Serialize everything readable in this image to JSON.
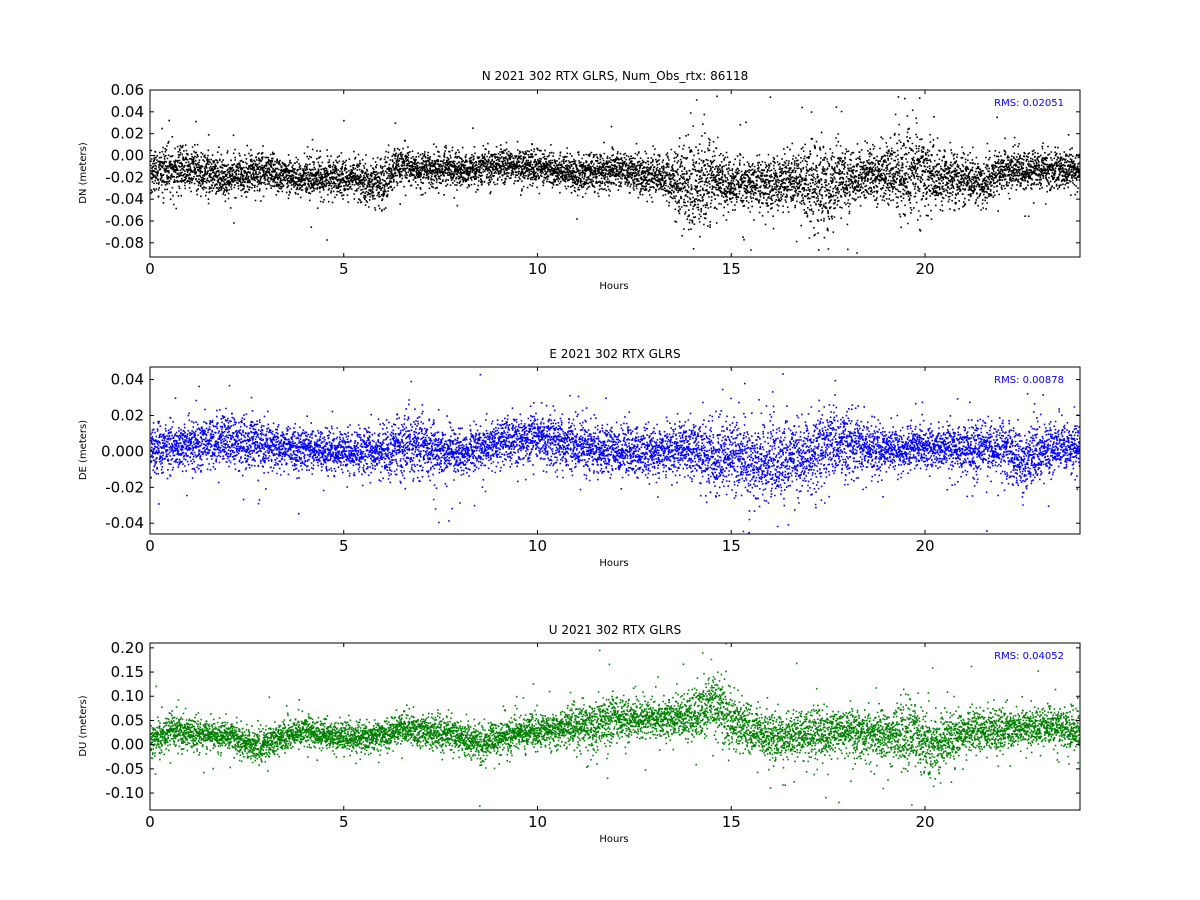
{
  "chart_data": [
    {
      "type": "scatter",
      "title": "N 2021 302 RTX  GLRS, Num_Obs_rtx: 86118",
      "xlabel": "Hours",
      "ylabel": "DN (meters)",
      "xlim": [
        0,
        24
      ],
      "ylim": [
        -0.093,
        0.06
      ],
      "xticks": [
        "0",
        "5",
        "10",
        "15",
        "20"
      ],
      "yticks": [
        "0.06",
        "0.04",
        "0.02",
        "0.00",
        "-0.02",
        "-0.04",
        "-0.06",
        "-0.08"
      ],
      "annotation": "RMS:  0.02051",
      "color": "#000000",
      "series_profile": {
        "hours": [
          0,
          1,
          2,
          3,
          4,
          5,
          6,
          6.4,
          7,
          8,
          9,
          10,
          11,
          12,
          13,
          13.5,
          14,
          14.3,
          14.6,
          15,
          16,
          16.5,
          17,
          17.4,
          17.8,
          18.5,
          19,
          19.6,
          20.2,
          21,
          21.5,
          22,
          23,
          24
        ],
        "mean": [
          -0.015,
          -0.012,
          -0.018,
          -0.015,
          -0.02,
          -0.02,
          -0.025,
          -0.008,
          -0.012,
          -0.013,
          -0.008,
          -0.01,
          -0.016,
          -0.012,
          -0.018,
          -0.022,
          -0.028,
          -0.025,
          -0.02,
          -0.025,
          -0.024,
          -0.022,
          -0.025,
          -0.03,
          -0.022,
          -0.018,
          -0.015,
          -0.015,
          -0.02,
          -0.02,
          -0.024,
          -0.015,
          -0.012,
          -0.012
        ],
        "spread": [
          0.012,
          0.013,
          0.012,
          0.009,
          0.01,
          0.011,
          0.012,
          0.01,
          0.01,
          0.01,
          0.009,
          0.009,
          0.01,
          0.01,
          0.011,
          0.016,
          0.024,
          0.026,
          0.02,
          0.013,
          0.014,
          0.016,
          0.022,
          0.03,
          0.018,
          0.013,
          0.016,
          0.027,
          0.018,
          0.012,
          0.012,
          0.011,
          0.011,
          0.011
        ]
      }
    },
    {
      "type": "scatter",
      "title": "E 2021 302 RTX  GLRS",
      "xlabel": "Hours",
      "ylabel": "DE (meters)",
      "xlim": [
        0,
        24
      ],
      "ylim": [
        -0.046,
        0.047
      ],
      "xticks": [
        "0",
        "5",
        "10",
        "15",
        "20"
      ],
      "yticks": [
        "0.04",
        "0.02",
        "0.000",
        "-0.02",
        "-0.04"
      ],
      "annotation": "RMS:  0.00878",
      "color": "#0000ff",
      "series_profile": {
        "hours": [
          0,
          1,
          2,
          3,
          4,
          5,
          6,
          6.8,
          7.5,
          8,
          9,
          10,
          11,
          12,
          13,
          14,
          14.5,
          15,
          15.8,
          16.5,
          17,
          17.5,
          18,
          19,
          20,
          21,
          22,
          22.5,
          23,
          24
        ],
        "mean": [
          0.002,
          0.004,
          0.007,
          0.003,
          0.001,
          0.001,
          0.0,
          0.005,
          0.0,
          -0.001,
          0.005,
          0.009,
          0.004,
          0.001,
          0.0,
          0.002,
          -0.004,
          0.0,
          -0.008,
          -0.002,
          0.0,
          0.004,
          0.004,
          0.001,
          0.003,
          0.002,
          0.002,
          -0.006,
          0.0,
          0.004
        ],
        "spread": [
          0.008,
          0.008,
          0.009,
          0.007,
          0.007,
          0.007,
          0.008,
          0.012,
          0.009,
          0.007,
          0.008,
          0.008,
          0.009,
          0.008,
          0.008,
          0.009,
          0.013,
          0.011,
          0.014,
          0.012,
          0.013,
          0.012,
          0.011,
          0.007,
          0.007,
          0.008,
          0.009,
          0.01,
          0.009,
          0.008
        ]
      }
    },
    {
      "type": "scatter",
      "title": "U 2021 302 RTX  GLRS",
      "xlabel": "Hours",
      "ylabel": "DU (meters)",
      "xlim": [
        0,
        24
      ],
      "ylim": [
        -0.135,
        0.21
      ],
      "xticks": [
        "0",
        "5",
        "10",
        "15",
        "20"
      ],
      "yticks": [
        "0.20",
        "0.15",
        "0.10",
        "0.05",
        "0.00",
        "-0.05",
        "-0.10"
      ],
      "annotation": "RMS:  0.04052",
      "color": "#008000",
      "series_profile": {
        "hours": [
          0,
          0.5,
          1,
          2,
          2.8,
          3.5,
          4,
          5,
          6,
          6.5,
          7,
          8,
          8.5,
          9,
          10,
          11,
          11.5,
          12,
          13,
          14,
          14.5,
          15,
          15.5,
          16,
          17,
          18,
          19,
          19.6,
          20.2,
          21,
          22,
          23,
          24
        ],
        "mean": [
          0.01,
          0.03,
          0.025,
          0.02,
          -0.005,
          0.02,
          0.03,
          0.015,
          0.02,
          0.035,
          0.03,
          0.02,
          0.0,
          0.015,
          0.03,
          0.045,
          0.04,
          0.055,
          0.055,
          0.06,
          0.09,
          0.05,
          0.035,
          0.015,
          0.02,
          0.03,
          0.02,
          0.02,
          0.0,
          0.03,
          0.035,
          0.04,
          0.03
        ],
        "spread": [
          0.02,
          0.022,
          0.02,
          0.018,
          0.02,
          0.018,
          0.018,
          0.018,
          0.018,
          0.02,
          0.02,
          0.02,
          0.025,
          0.02,
          0.02,
          0.025,
          0.035,
          0.025,
          0.02,
          0.03,
          0.04,
          0.035,
          0.03,
          0.03,
          0.03,
          0.025,
          0.03,
          0.05,
          0.035,
          0.025,
          0.025,
          0.025,
          0.025
        ]
      }
    }
  ]
}
